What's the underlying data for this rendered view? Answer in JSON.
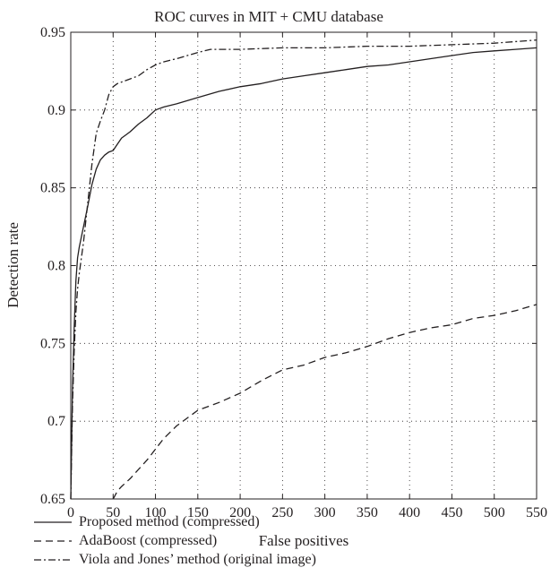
{
  "chart_data": {
    "type": "line",
    "title": "ROC curves in MIT + CMU database",
    "xlabel": "False positives",
    "ylabel": "Detection rate",
    "xlim": [
      0,
      550
    ],
    "ylim": [
      0.65,
      0.95
    ],
    "xticks": [
      0,
      50,
      100,
      150,
      200,
      250,
      300,
      350,
      400,
      450,
      500,
      550
    ],
    "yticks": [
      0.65,
      0.7,
      0.75,
      0.8,
      0.85,
      0.9,
      0.95
    ],
    "xtick_labels": [
      "0",
      "50",
      "100",
      "150",
      "200",
      "250",
      "300",
      "350",
      "400",
      "450",
      "500",
      "550"
    ],
    "ytick_labels": [
      "0.65",
      "0.7",
      "0.75",
      "0.8",
      "0.85",
      "0.9",
      "0.95"
    ],
    "grid": true,
    "legend_position": "bottom",
    "series": [
      {
        "name": "Proposed method (compressed)",
        "style": "solid",
        "x": [
          0,
          2,
          4,
          6,
          8,
          10,
          15,
          20,
          25,
          30,
          35,
          40,
          45,
          50,
          55,
          60,
          65,
          70,
          80,
          90,
          100,
          110,
          125,
          150,
          175,
          200,
          225,
          250,
          275,
          300,
          325,
          350,
          375,
          400,
          425,
          450,
          475,
          500,
          525,
          550
        ],
        "y": [
          0.65,
          0.72,
          0.76,
          0.79,
          0.805,
          0.812,
          0.825,
          0.838,
          0.852,
          0.862,
          0.868,
          0.871,
          0.873,
          0.874,
          0.878,
          0.882,
          0.884,
          0.886,
          0.891,
          0.895,
          0.9,
          0.902,
          0.904,
          0.908,
          0.912,
          0.915,
          0.917,
          0.92,
          0.922,
          0.924,
          0.926,
          0.928,
          0.929,
          0.931,
          0.933,
          0.935,
          0.937,
          0.938,
          0.939,
          0.94
        ]
      },
      {
        "name": "AdaBoost (compressed)",
        "style": "dashed",
        "x": [
          50,
          55,
          60,
          70,
          80,
          90,
          100,
          110,
          125,
          150,
          175,
          200,
          225,
          250,
          275,
          300,
          325,
          350,
          375,
          400,
          425,
          450,
          475,
          500,
          525,
          550
        ],
        "y": [
          0.65,
          0.655,
          0.658,
          0.663,
          0.669,
          0.675,
          0.682,
          0.689,
          0.697,
          0.707,
          0.712,
          0.718,
          0.726,
          0.733,
          0.736,
          0.741,
          0.744,
          0.748,
          0.753,
          0.757,
          0.76,
          0.762,
          0.766,
          0.768,
          0.771,
          0.775
        ]
      },
      {
        "name": "Viola and Jones’ method (original image)",
        "style": "dashdot",
        "x": [
          0,
          2,
          4,
          6,
          8,
          10,
          15,
          20,
          25,
          30,
          35,
          40,
          45,
          50,
          55,
          60,
          70,
          80,
          90,
          100,
          110,
          125,
          150,
          165,
          175,
          200,
          250,
          300,
          350,
          400,
          450,
          500,
          550
        ],
        "y": [
          0.65,
          0.71,
          0.745,
          0.77,
          0.785,
          0.795,
          0.815,
          0.84,
          0.865,
          0.885,
          0.893,
          0.9,
          0.91,
          0.915,
          0.917,
          0.918,
          0.92,
          0.922,
          0.926,
          0.929,
          0.931,
          0.933,
          0.937,
          0.939,
          0.939,
          0.939,
          0.94,
          0.94,
          0.941,
          0.941,
          0.942,
          0.943,
          0.945
        ]
      }
    ]
  }
}
